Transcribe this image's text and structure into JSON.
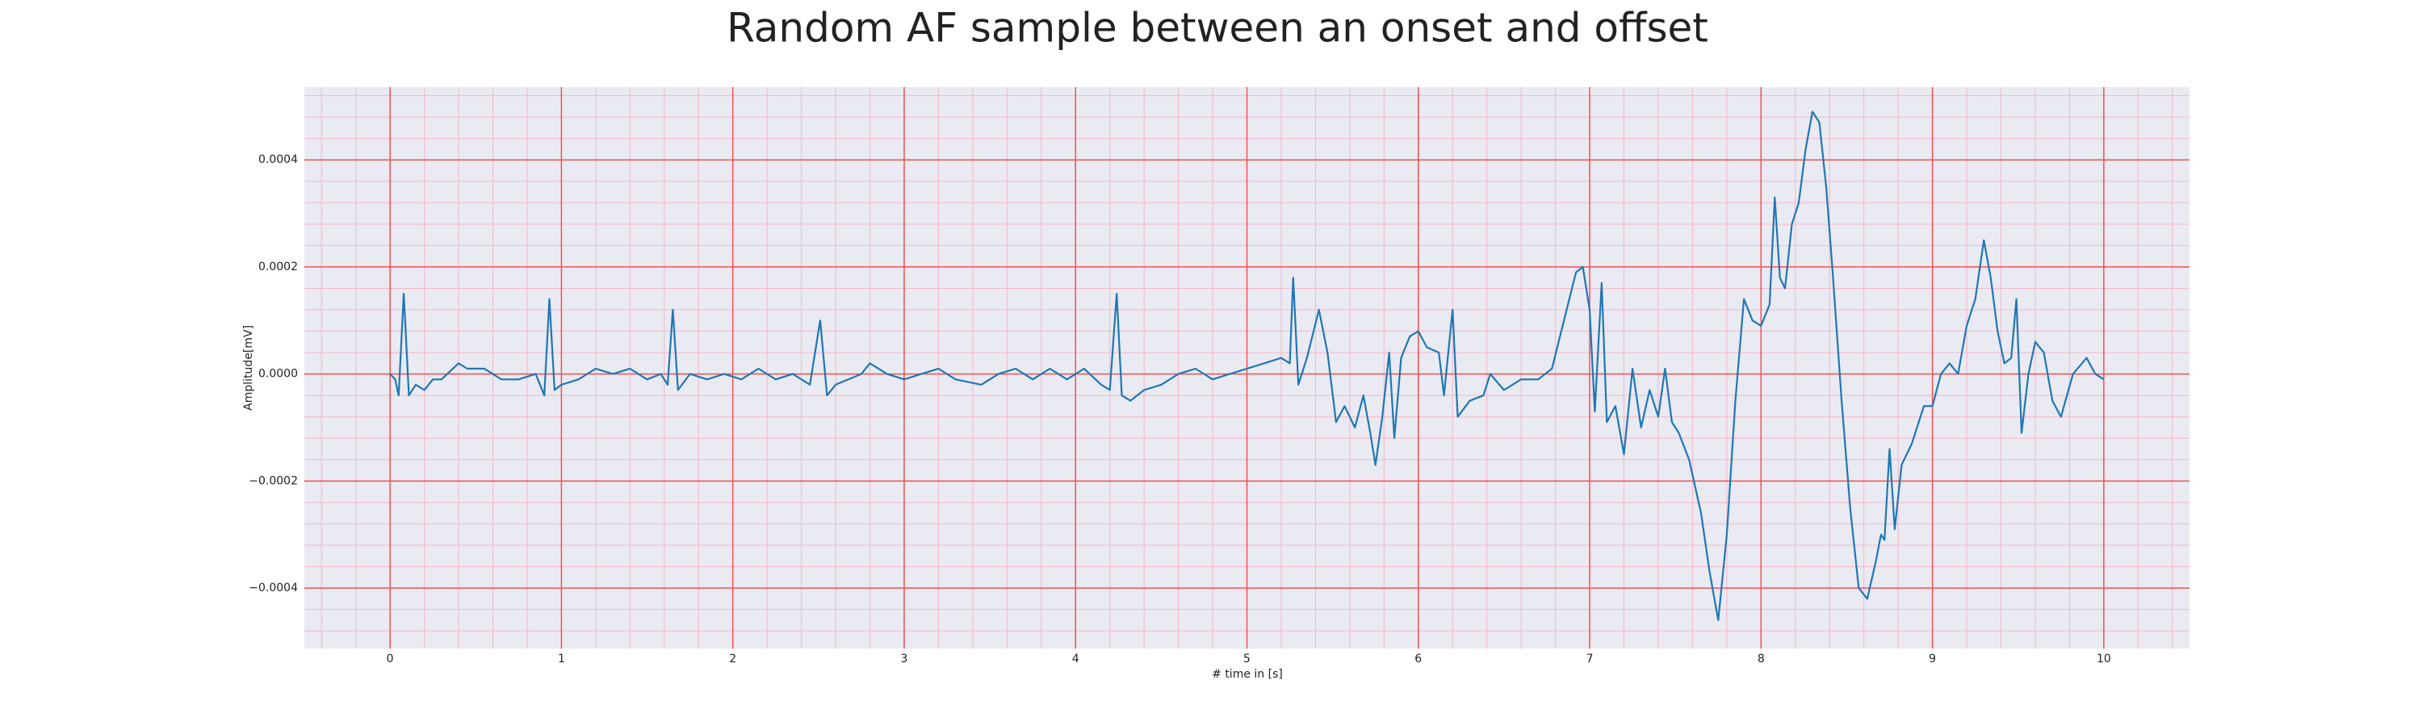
{
  "chart_data": {
    "type": "line",
    "title": "Random AF sample between an onset and offset",
    "xlabel": "# time in [s]",
    "ylabel": "Amplitude[mV]",
    "xlim": [
      -0.5,
      10.5
    ],
    "ylim": [
      -0.000513,
      0.000536
    ],
    "xticks": [
      0,
      1,
      2,
      3,
      4,
      5,
      6,
      7,
      8,
      9,
      10
    ],
    "yticks": [
      {
        "value": -0.0004,
        "label": "−0.0004"
      },
      {
        "value": -0.0002,
        "label": "−0.0002"
      },
      {
        "value": 0,
        "label": "0.0000"
      },
      0.0002,
      0.0004
    ],
    "grid": true,
    "x": [
      0,
      0.03,
      0.05,
      0.08,
      0.11,
      0.15,
      0.2,
      0.25,
      0.3,
      0.4,
      0.45,
      0.55,
      0.65,
      0.75,
      0.85,
      0.9,
      0.93,
      0.96,
      1.0,
      1.1,
      1.2,
      1.3,
      1.4,
      1.5,
      1.58,
      1.62,
      1.65,
      1.68,
      1.75,
      1.85,
      1.95,
      2.05,
      2.15,
      2.25,
      2.35,
      2.45,
      2.51,
      2.55,
      2.6,
      2.75,
      2.8,
      2.9,
      3.0,
      3.1,
      3.2,
      3.3,
      3.45,
      3.55,
      3.65,
      3.75,
      3.85,
      3.95,
      4.05,
      4.15,
      4.2,
      4.24,
      4.27,
      4.32,
      4.4,
      4.5,
      4.6,
      4.7,
      4.8,
      4.9,
      5.0,
      5.1,
      5.2,
      5.25,
      5.27,
      5.3,
      5.35,
      5.42,
      5.47,
      5.52,
      5.57,
      5.63,
      5.68,
      5.72,
      5.75,
      5.79,
      5.83,
      5.86,
      5.9,
      5.95,
      6.0,
      6.05,
      6.12,
      6.15,
      6.2,
      6.23,
      6.3,
      6.38,
      6.42,
      6.5,
      6.6,
      6.7,
      6.78,
      6.85,
      6.92,
      6.96,
      7.0,
      7.03,
      7.07,
      7.1,
      7.15,
      7.2,
      7.25,
      7.3,
      7.35,
      7.4,
      7.44,
      7.48,
      7.52,
      7.58,
      7.65,
      7.7,
      7.75,
      7.8,
      7.85,
      7.9,
      7.95,
      8.0,
      8.05,
      8.08,
      8.11,
      8.14,
      8.18,
      8.22,
      8.26,
      8.3,
      8.34,
      8.38,
      8.42,
      8.47,
      8.52,
      8.57,
      8.62,
      8.67,
      8.7,
      8.72,
      8.75,
      8.78,
      8.82,
      8.88,
      8.95,
      9.0,
      9.05,
      9.1,
      9.15,
      9.2,
      9.25,
      9.3,
      9.34,
      9.38,
      9.42,
      9.46,
      9.49,
      9.52,
      9.56,
      9.6,
      9.65,
      9.7,
      9.75,
      9.82,
      9.9,
      9.95,
      10.0
    ],
    "series": [
      {
        "color": "#1f77b4",
        "values": [
          0,
          -1e-05,
          -4e-05,
          0.00015,
          -4e-05,
          -2e-05,
          -3e-05,
          -1e-05,
          -1e-05,
          2e-05,
          1e-05,
          1e-05,
          -1e-05,
          -1e-05,
          0,
          -4e-05,
          0.00014,
          -3e-05,
          -2e-05,
          -1e-05,
          1e-05,
          0,
          1e-05,
          -1e-05,
          0,
          -2e-05,
          0.00012,
          -3e-05,
          0,
          -1e-05,
          0,
          -1e-05,
          1e-05,
          -1e-05,
          0,
          -2e-05,
          0.0001,
          -4e-05,
          -2e-05,
          0,
          2e-05,
          0,
          -1e-05,
          0,
          1e-05,
          -1e-05,
          -2e-05,
          0,
          1e-05,
          -1e-05,
          1e-05,
          -1e-05,
          1e-05,
          -2e-05,
          -3e-05,
          0.00015,
          -4e-05,
          -5e-05,
          -3e-05,
          -2e-05,
          0,
          1e-05,
          -1e-05,
          0,
          1e-05,
          2e-05,
          3e-05,
          2e-05,
          0.00018,
          -2e-05,
          3e-05,
          0.00012,
          4e-05,
          -9e-05,
          -6e-05,
          -0.0001,
          -4e-05,
          -0.00011,
          -0.00017,
          -8e-05,
          4e-05,
          -0.00012,
          3e-05,
          7e-05,
          8e-05,
          5e-05,
          4e-05,
          -4e-05,
          0.00012,
          -8e-05,
          -5e-05,
          -4e-05,
          0,
          -3e-05,
          -1e-05,
          -1e-05,
          1e-05,
          0.0001,
          0.00019,
          0.0002,
          0.00012,
          -7e-05,
          0.00017,
          -9e-05,
          -6e-05,
          -0.00015,
          1e-05,
          -0.0001,
          -3e-05,
          -8e-05,
          1e-05,
          -9e-05,
          -0.00011,
          -0.00016,
          -0.00026,
          -0.00037,
          -0.00046,
          -0.0003,
          -5e-05,
          0.00014,
          0.0001,
          9e-05,
          0.00013,
          0.00033,
          0.00018,
          0.00016,
          0.00028,
          0.00032,
          0.00042,
          0.00049,
          0.00047,
          0.00035,
          0.00018,
          -5e-05,
          -0.00025,
          -0.0004,
          -0.00042,
          -0.00035,
          -0.0003,
          -0.00031,
          -0.00014,
          -0.00029,
          -0.00017,
          -0.00013,
          -6e-05,
          -6e-05,
          0,
          2e-05,
          0,
          9e-05,
          0.00014,
          0.00025,
          0.00018,
          8e-05,
          2e-05,
          3e-05,
          0.00014,
          -0.00011,
          0,
          6e-05,
          4e-05,
          -5e-05,
          -8e-05,
          0,
          3e-05,
          0,
          -1e-05
        ]
      }
    ]
  }
}
